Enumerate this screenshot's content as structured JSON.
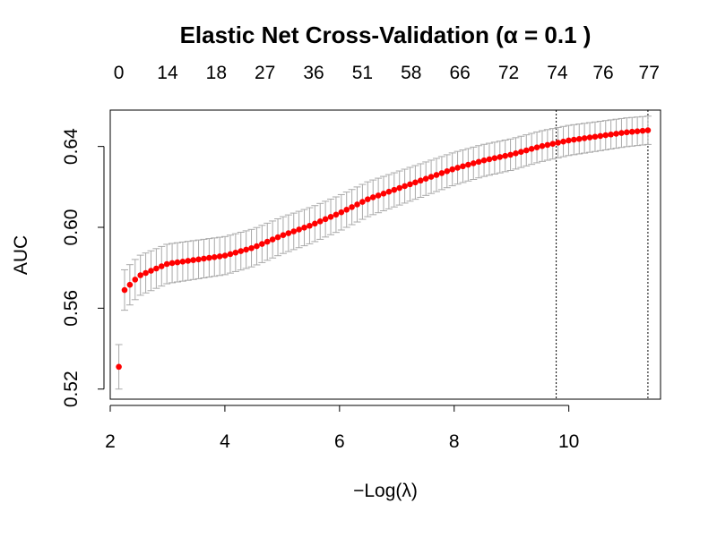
{
  "chart_data": {
    "type": "scatter",
    "title": "Elastic Net Cross-Validation (α = 0.1 )",
    "xlabel": "−Log(λ)",
    "ylabel": "AUC",
    "xlim": [
      2.0,
      11.6
    ],
    "ylim": [
      0.515,
      0.658
    ],
    "x_ticks": [
      "2",
      "4",
      "6",
      "8",
      "10"
    ],
    "x_tick_values": [
      2,
      4,
      6,
      8,
      10
    ],
    "y_ticks": [
      "0.52",
      "0.56",
      "0.60",
      "0.64"
    ],
    "y_tick_values": [
      0.52,
      0.56,
      0.6,
      0.64
    ],
    "top_ticks": [
      "0",
      "14",
      "18",
      "27",
      "36",
      "51",
      "58",
      "66",
      "72",
      "74",
      "76",
      "77"
    ],
    "top_tick_values": [
      2.15,
      3.0,
      3.85,
      4.7,
      5.55,
      6.4,
      7.25,
      8.1,
      8.95,
      9.8,
      10.6,
      11.4
    ],
    "vlines": [
      9.78,
      11.38
    ],
    "grid": false,
    "legend": "none",
    "point_color": "#ff0000",
    "errorbar_color": "#a9a9a9",
    "curve_anchors": {
      "x": [
        2.25,
        2.5,
        3.0,
        3.5,
        4.0,
        4.5,
        5.0,
        5.5,
        6.0,
        6.5,
        7.0,
        7.5,
        8.0,
        8.5,
        9.0,
        9.5,
        10.0,
        10.5,
        11.0,
        11.38
      ],
      "y": [
        0.569,
        0.576,
        0.582,
        0.584,
        0.586,
        0.59,
        0.596,
        0.601,
        0.607,
        0.614,
        0.619,
        0.624,
        0.629,
        0.633,
        0.636,
        0.64,
        0.643,
        0.645,
        0.647,
        0.648
      ]
    },
    "first_point": {
      "x": 2.15,
      "y": 0.531,
      "err": 0.011
    },
    "n_points": 100,
    "errorbar_halfwidth_start": 0.01,
    "errorbar_halfwidth_end": 0.007
  }
}
